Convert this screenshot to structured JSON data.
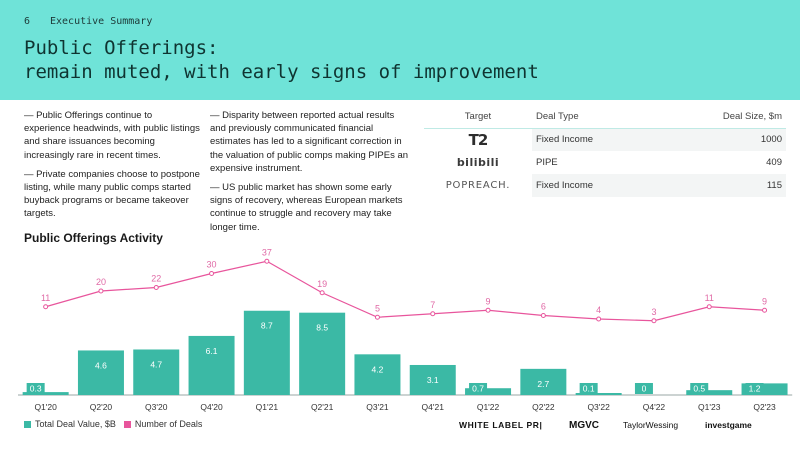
{
  "header": {
    "page_number": "6",
    "section": "Executive Summary",
    "title_line1": "Public Offerings:",
    "title_line2": "remain muted, with early signs of improvement"
  },
  "bullets_left": [
    "— Public Offerings continue to experience headwinds, with public listings and share issuances becoming increasingly rare in recent times.",
    "— Private companies choose to postpone listing, while many public comps started buyback programs or became takeover targets."
  ],
  "bullets_middle": [
    "— Disparity between reported actual results and previously communicated financial estimates has led to a significant correction in the valuation of public comps making PIPEs an expensive instrument.",
    "— US public market has shown some early signs of recovery, whereas European markets continue to struggle and recovery may take longer time."
  ],
  "deals_table": {
    "headers": [
      "Target",
      "Deal Type",
      "Deal Size, $m"
    ],
    "rows": [
      {
        "target": "T2",
        "deal_type": "Fixed Income",
        "deal_size": "1000"
      },
      {
        "target": "bilibili",
        "deal_type": "PIPE",
        "deal_size": "409"
      },
      {
        "target": "POPREACH.",
        "deal_type": "Fixed Income",
        "deal_size": "115"
      }
    ]
  },
  "chart_data": {
    "type": "bar",
    "title": "Public Offerings Activity",
    "categories": [
      "Q1'20",
      "Q2'20",
      "Q3'20",
      "Q4'20",
      "Q1'21",
      "Q2'21",
      "Q3'21",
      "Q4'21",
      "Q1'22",
      "Q2'22",
      "Q3'22",
      "Q4'22",
      "Q1'23",
      "Q2'23"
    ],
    "series": [
      {
        "name": "Total Deal Value, $B",
        "kind": "bar",
        "color": "#3bb9a5",
        "values": [
          0.3,
          4.6,
          4.7,
          6.1,
          8.7,
          8.5,
          4.2,
          3.1,
          0.7,
          2.7,
          0.1,
          0,
          0.5,
          1.2
        ]
      },
      {
        "name": "Number of Deals",
        "kind": "line",
        "color": "#e8559c",
        "values": [
          11,
          20,
          22,
          30,
          37,
          19,
          5,
          7,
          9,
          6,
          4,
          3,
          11,
          9
        ]
      }
    ],
    "ylim_bars": [
      0,
      9.5
    ],
    "ylim_line": [
      0,
      40
    ]
  },
  "legend": {
    "bars": "Total Deal Value, $B",
    "line": "Number of Deals"
  },
  "footer_logos": [
    "WHITE LABEL PR|",
    "MGVC",
    "TaylorWessing",
    "investgame"
  ],
  "colors": {
    "header_bg": "#6fe3d8",
    "bar": "#3bb9a5",
    "line": "#e8559c",
    "line_label": "#e06aa6"
  }
}
